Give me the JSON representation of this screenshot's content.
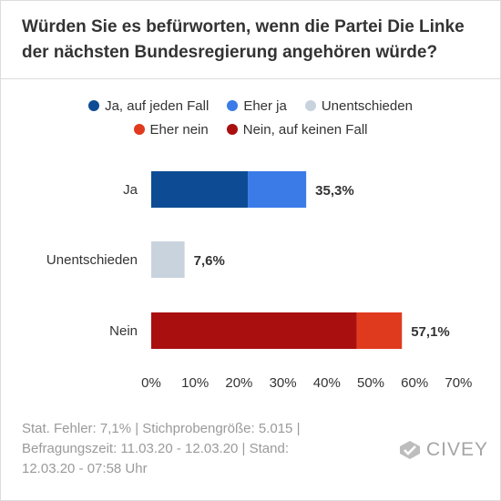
{
  "title": "Würden Sie es befürworten, wenn die Partei Die Linke der nächsten Bundesregierung angehören würde?",
  "legend": {
    "row1": [
      {
        "label": "Ja, auf jeden Fall",
        "color": "#0d4c94"
      },
      {
        "label": "Eher ja",
        "color": "#3a7be8"
      },
      {
        "label": "Unentschieden",
        "color": "#c9d3dd"
      }
    ],
    "row2": [
      {
        "label": "Eher nein",
        "color": "#e03a1e"
      },
      {
        "label": "Nein, auf keinen Fall",
        "color": "#a90f0f"
      }
    ]
  },
  "chart_data": {
    "type": "bar",
    "orientation": "horizontal",
    "stacked": true,
    "categories": [
      "Ja",
      "Unentschieden",
      "Nein"
    ],
    "series": [
      {
        "name": "Ja, auf jeden Fall",
        "color": "#0d4c94",
        "values": [
          22.0,
          0,
          0
        ]
      },
      {
        "name": "Eher ja",
        "color": "#3a7be8",
        "values": [
          13.3,
          0,
          0
        ]
      },
      {
        "name": "Unentschieden",
        "color": "#c9d3dd",
        "values": [
          0,
          7.6,
          0
        ]
      },
      {
        "name": "Nein, auf keinen Fall",
        "color": "#a90f0f",
        "values": [
          0,
          0,
          46.8
        ]
      },
      {
        "name": "Eher nein",
        "color": "#e03a1e",
        "values": [
          0,
          0,
          10.3
        ]
      }
    ],
    "totals": [
      35.3,
      7.6,
      57.1
    ],
    "total_labels": [
      "35,3%",
      "7,6%",
      "57,1%"
    ],
    "xlim": [
      0,
      70
    ],
    "xticks": [
      0,
      10,
      20,
      30,
      40,
      50,
      60,
      70
    ],
    "xtick_labels": [
      "0%",
      "10%",
      "20%",
      "30%",
      "40%",
      "50%",
      "60%",
      "70%"
    ],
    "legend_placement": "top-center",
    "grid": false
  },
  "footer": {
    "line1": "Stat. Fehler: 7,1% | Stichprobengröße: 5.015 |",
    "line2": "Befragungszeit: 11.03.20 - 12.03.20 | Stand:",
    "line3": "12.03.20 - 07:58 Uhr"
  },
  "logo_text": "CIVEY"
}
